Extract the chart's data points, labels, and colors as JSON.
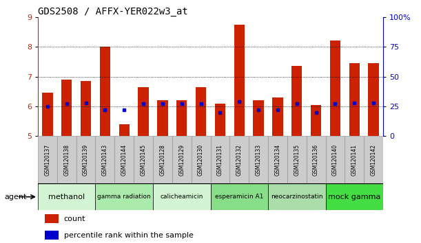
{
  "title": "GDS2508 / AFFX-YER022w3_at",
  "samples": [
    "GSM120137",
    "GSM120138",
    "GSM120139",
    "GSM120143",
    "GSM120144",
    "GSM120145",
    "GSM120128",
    "GSM120129",
    "GSM120130",
    "GSM120131",
    "GSM120132",
    "GSM120133",
    "GSM120134",
    "GSM120135",
    "GSM120136",
    "GSM120140",
    "GSM120141",
    "GSM120142"
  ],
  "counts": [
    6.45,
    6.9,
    6.85,
    8.0,
    5.4,
    6.65,
    6.2,
    6.2,
    6.65,
    6.1,
    8.73,
    6.2,
    6.3,
    7.35,
    6.05,
    8.2,
    7.45,
    7.45
  ],
  "percentile_ranks": [
    25,
    27,
    28,
    22,
    22,
    27,
    27,
    27,
    27,
    20,
    29,
    22,
    22,
    27,
    20,
    27,
    28,
    28
  ],
  "agents": [
    {
      "name": "methanol",
      "start": 0,
      "end": 3,
      "color": "#d4f5d4"
    },
    {
      "name": "gamma radiation",
      "start": 3,
      "end": 6,
      "color": "#aaeaaa"
    },
    {
      "name": "calicheamicin",
      "start": 6,
      "end": 9,
      "color": "#d4f5d4"
    },
    {
      "name": "esperamicin A1",
      "start": 9,
      "end": 12,
      "color": "#88dd88"
    },
    {
      "name": "neocarzinostatin",
      "start": 12,
      "end": 15,
      "color": "#aaddaa"
    },
    {
      "name": "mock gamma",
      "start": 15,
      "end": 18,
      "color": "#44dd44"
    }
  ],
  "ylim": [
    5,
    9
  ],
  "yticks": [
    5,
    6,
    7,
    8,
    9
  ],
  "y2ticks": [
    0,
    25,
    50,
    75,
    100
  ],
  "y2labels": [
    "0",
    "25",
    "50",
    "75",
    "100%"
  ],
  "bar_color": "#cc2200",
  "dot_color": "#0000cc",
  "grid_yticks": [
    6,
    7,
    8
  ],
  "title_fontsize": 10,
  "axis_fontsize": 8,
  "legend_fontsize": 8,
  "sample_label_fontsize": 5.5,
  "agent_fontsize": 8,
  "sample_bg_color": "#cccccc",
  "sample_border_color": "#888888"
}
